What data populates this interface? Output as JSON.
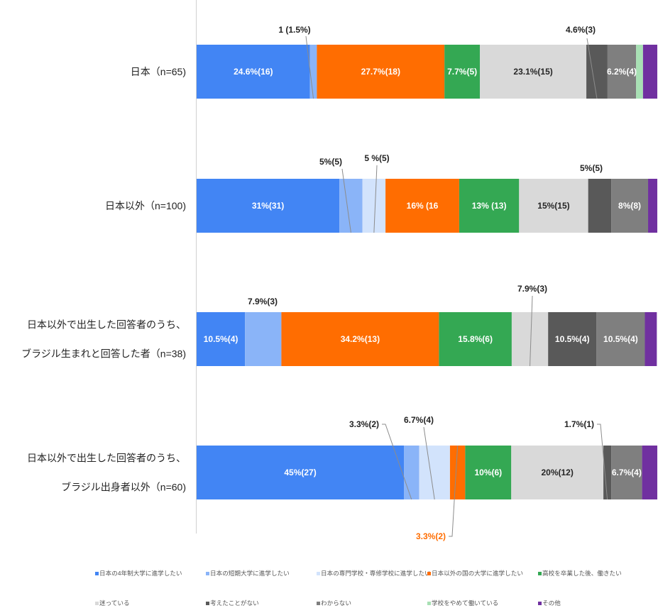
{
  "chart_data": {
    "type": "bar",
    "orientation": "horizontal",
    "stacking": "percent",
    "categories": [
      "日本（n=65)",
      "日本以外（n=100)",
      "日本以外で出生した回答者のうち、\nブラジル生まれと回答した者（n=38)",
      "日本以外で出生した回答者のうち、\nブラジル出身者以外（n=60)"
    ],
    "xlim": [
      0,
      100
    ],
    "grid": false,
    "legend": "bottom",
    "series": [
      {
        "name": "日本の4年制大学に進学したい",
        "color": "#4285F4",
        "values": [
          24.6,
          31,
          10.5,
          45
        ],
        "labels": [
          "24.6%(16)",
          "31%(31)",
          "10.5%(4)",
          "45%(27)"
        ]
      },
      {
        "name": "日本の短期大学に進学したい",
        "color": "#8AB4F8",
        "values": [
          1.5,
          5,
          7.9,
          3.3
        ],
        "labels": [
          "1 (1.5%)",
          "5%(5)",
          "7.9%(3)",
          "3.3%(2)"
        ]
      },
      {
        "name": "日本の専門学校・専修学校に進学したい",
        "color": "#D2E3FC",
        "values": [
          0,
          5,
          0,
          6.7
        ],
        "labels": [
          null,
          "5 %(5)",
          null,
          "6.7%(4)"
        ]
      },
      {
        "name": "日本以外の国の大学に進学したい",
        "color": "#FF6D01",
        "values": [
          27.7,
          16,
          34.2,
          3.3
        ],
        "labels": [
          "27.7%(18)",
          "16% (16",
          "34.2%(13)",
          "3.3%(2)"
        ]
      },
      {
        "name": "高校を卒業した後、働きたい",
        "color": "#34A853",
        "values": [
          7.7,
          13,
          15.8,
          10
        ],
        "labels": [
          "7.7%(5)",
          "13% (13)",
          "15.8%(6)",
          "10%(6)"
        ]
      },
      {
        "name": "迷っている",
        "color": "#D9D9D9",
        "values": [
          23.1,
          15,
          7.9,
          20
        ],
        "labels": [
          "23.1%(15)",
          "15%(15)",
          "7.9%(3)",
          "20%(12)"
        ]
      },
      {
        "name": "考えたことがない",
        "color": "#595959",
        "values": [
          4.6,
          5,
          10.5,
          1.7
        ],
        "labels": [
          "4.6%(3)",
          "5%(5)",
          "10.5%(4)",
          "1.7%(1)"
        ]
      },
      {
        "name": "わからない",
        "color": "#7F7F7F",
        "values": [
          6.2,
          8,
          10.5,
          6.7
        ],
        "labels": [
          "6.2%(4)",
          "8%(8)",
          "10.5%(4)",
          "6.7%(4)"
        ]
      },
      {
        "name": "学校をやめて働いている",
        "color": "#A8E0B4",
        "values": [
          1.5,
          0,
          0,
          0
        ],
        "labels": [
          null,
          null,
          null,
          null
        ]
      },
      {
        "name": "その他",
        "color": "#7030A0",
        "values": [
          3.1,
          2,
          2.6,
          3.3
        ],
        "labels": [
          null,
          null,
          null,
          null
        ]
      }
    ]
  }
}
